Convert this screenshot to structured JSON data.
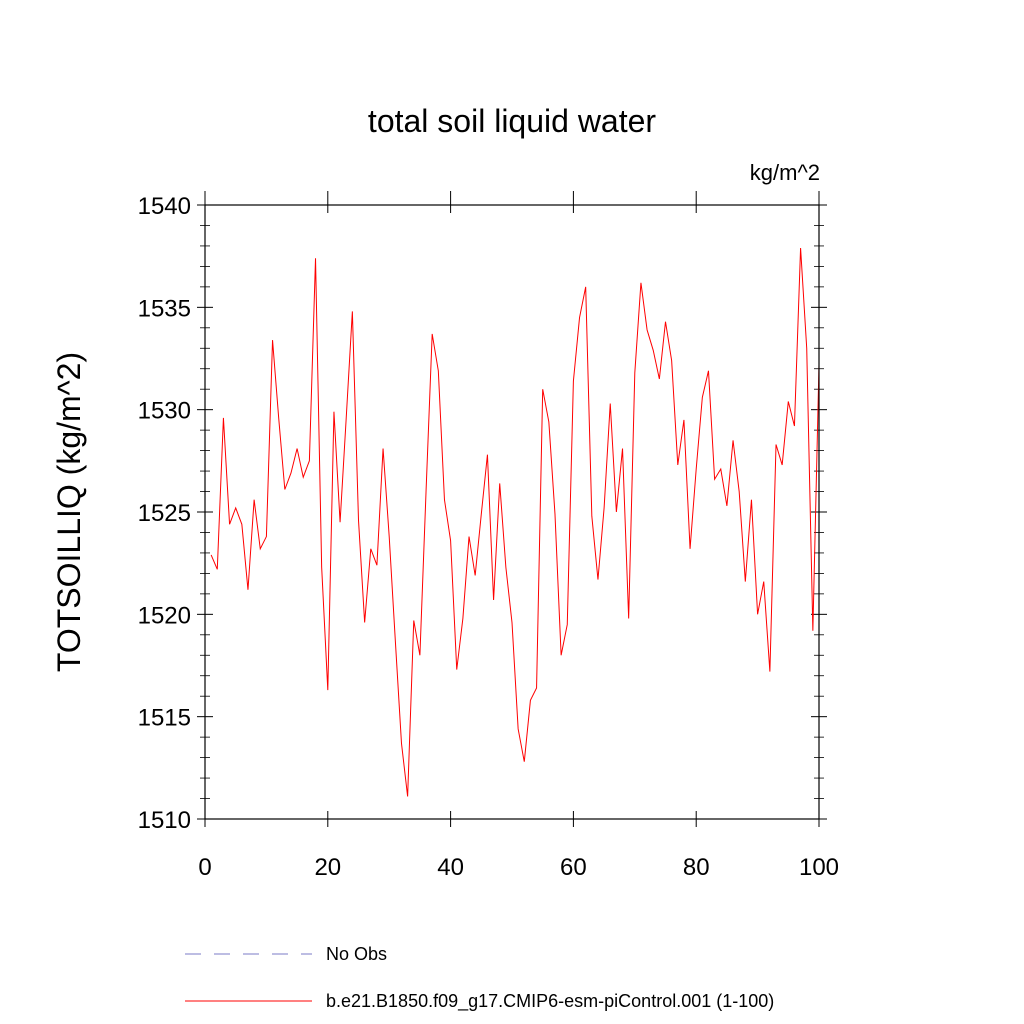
{
  "chart_data": {
    "type": "line",
    "title": "total soil liquid water",
    "units": "kg/m^2",
    "ylabel": "TOTSOILLIQ  (kg/m^2)",
    "xlabel": "",
    "xlim": [
      0,
      100
    ],
    "ylim": [
      1510,
      1540
    ],
    "xticks": [
      0,
      20,
      40,
      60,
      80,
      100
    ],
    "yticks": [
      1510,
      1515,
      1520,
      1525,
      1530,
      1535,
      1540
    ],
    "series": [
      {
        "name": "b.e21.B1850.f09_g17.CMIP6-esm-piControl.001 (1-100)",
        "color": "#ff0000",
        "x": [
          1,
          2,
          3,
          4,
          5,
          6,
          7,
          8,
          9,
          10,
          11,
          12,
          13,
          14,
          15,
          16,
          17,
          18,
          19,
          20,
          21,
          22,
          23,
          24,
          25,
          26,
          27,
          28,
          29,
          30,
          31,
          32,
          33,
          34,
          35,
          36,
          37,
          38,
          39,
          40,
          41,
          42,
          43,
          44,
          45,
          46,
          47,
          48,
          49,
          50,
          51,
          52,
          53,
          54,
          55,
          56,
          57,
          58,
          59,
          60,
          61,
          62,
          63,
          64,
          65,
          66,
          67,
          68,
          69,
          70,
          71,
          72,
          73,
          74,
          75,
          76,
          77,
          78,
          79,
          80,
          81,
          82,
          83,
          84,
          85,
          86,
          87,
          88,
          89,
          90,
          91,
          92,
          93,
          94,
          95,
          96,
          97,
          98,
          99,
          100
        ],
        "values": [
          1522.9,
          1522.2,
          1529.6,
          1524.4,
          1525.2,
          1524.4,
          1521.2,
          1525.6,
          1523.2,
          1523.8,
          1533.4,
          1529.6,
          1526.1,
          1526.9,
          1528.1,
          1526.7,
          1527.5,
          1537.4,
          1522.3,
          1516.3,
          1529.9,
          1524.5,
          1529.6,
          1534.8,
          1524.6,
          1519.6,
          1523.2,
          1522.4,
          1528.1,
          1523.8,
          1518.7,
          1513.7,
          1511.1,
          1519.7,
          1518.0,
          1526.0,
          1533.7,
          1531.9,
          1525.6,
          1523.6,
          1517.3,
          1519.8,
          1523.8,
          1521.9,
          1524.9,
          1527.8,
          1520.7,
          1526.4,
          1522.3,
          1519.6,
          1514.4,
          1512.8,
          1515.8,
          1516.4,
          1531.0,
          1529.4,
          1524.9,
          1518.0,
          1519.5,
          1531.4,
          1534.5,
          1536.0,
          1524.8,
          1521.7,
          1525.2,
          1530.3,
          1525.0,
          1528.1,
          1519.8,
          1531.8,
          1536.2,
          1533.9,
          1532.9,
          1531.5,
          1534.3,
          1532.4,
          1527.3,
          1529.5,
          1523.2,
          1527.1,
          1530.6,
          1531.9,
          1526.6,
          1527.1,
          1525.3,
          1528.5,
          1526.0,
          1521.6,
          1525.6,
          1520.0,
          1521.6,
          1517.2,
          1528.3,
          1527.3,
          1530.4,
          1529.2,
          1537.9,
          1533.0,
          1519.2,
          1532.2
        ]
      },
      {
        "name": "No Obs",
        "color": "#7b7bc7",
        "values": []
      }
    ],
    "legend": [
      {
        "label": "No Obs",
        "style": "dashed",
        "color": "#7b7bc7"
      },
      {
        "label": "b.e21.B1850.f09_g17.CMIP6-esm-piControl.001 (1-100)",
        "style": "solid",
        "color": "#ff0000"
      }
    ]
  }
}
